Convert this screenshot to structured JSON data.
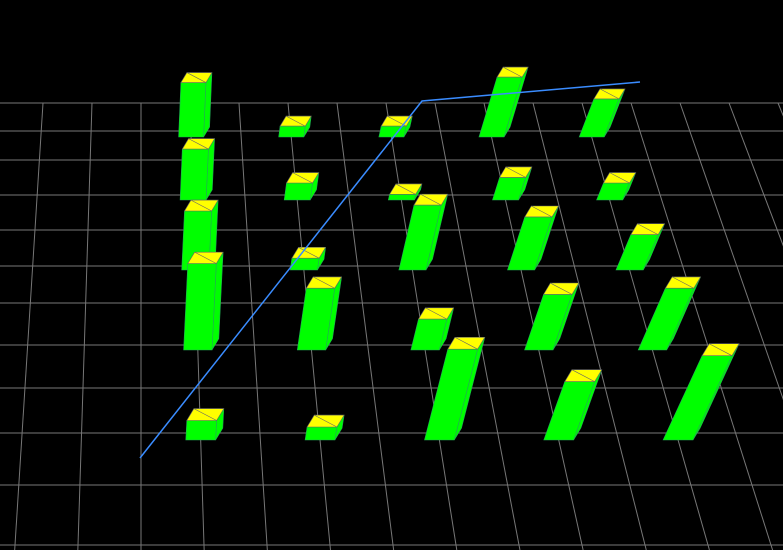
{
  "chart_data": {
    "type": "bar3d",
    "values": [
      [
        5,
        1,
        1,
        5.5,
        3.5
      ],
      [
        4.5,
        1.5,
        0.5,
        2,
        1.5
      ],
      [
        5,
        1,
        5.5,
        4.5,
        3
      ],
      [
        7,
        5,
        2.5,
        4.5,
        5
      ],
      [
        1.5,
        1,
        7,
        4.5,
        6.5
      ]
    ],
    "top_color": "#ffff00",
    "side_color": "#00ff00",
    "grid": true
  }
}
